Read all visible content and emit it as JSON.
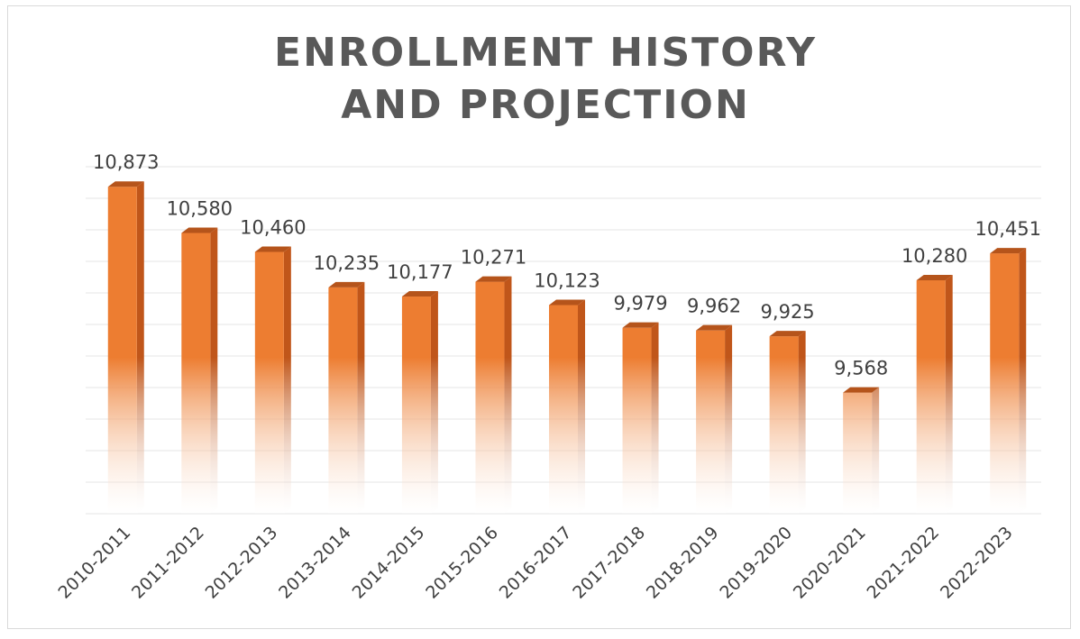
{
  "chart_data": {
    "type": "bar",
    "title": "ENROLLMENT HISTORY AND PROJECTION",
    "categories": [
      "2010-2011",
      "2011-2012",
      "2012-2013",
      "2013-2014",
      "2014-2015",
      "2015-2016",
      "2016-2017",
      "2017-2018",
      "2018-2019",
      "2019-2020",
      "2020-2021",
      "2021-2022",
      "2022-2023"
    ],
    "values": [
      10873,
      10580,
      10460,
      10235,
      10177,
      10271,
      10123,
      9979,
      9962,
      9925,
      9568,
      10280,
      10451
    ],
    "value_labels": [
      "10,873",
      "10,580",
      "10,460",
      "10,235",
      "10,177",
      "10,271",
      "10,123",
      "9,979",
      "9,962",
      "9,925",
      "9,568",
      "10,280",
      "10,451"
    ],
    "color": "#ed7d31",
    "ylim": [
      8800,
      11000
    ],
    "yticks": [
      8800,
      9000,
      9200,
      9400,
      9600,
      9800,
      10000,
      10200,
      10400,
      10600,
      10800,
      11000
    ],
    "grid": true
  }
}
